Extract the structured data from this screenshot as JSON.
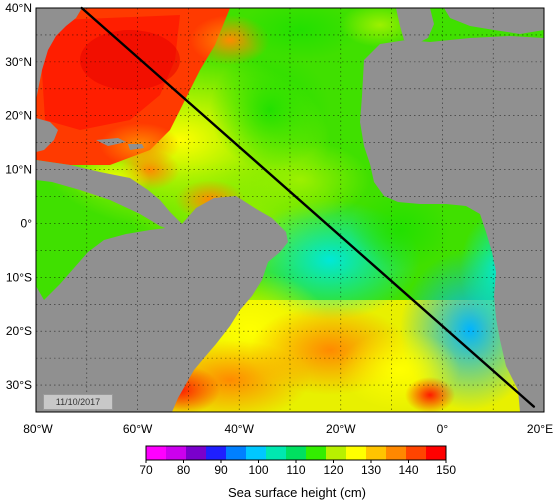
{
  "map": {
    "date": "11/10/2017",
    "lat_labels": [
      "40°N",
      "30°N",
      "20°N",
      "10°N",
      "0°",
      "10°S",
      "20°S",
      "30°S"
    ],
    "lon_labels": [
      "80°W",
      "60°W",
      "40°W",
      "20°W",
      "0°",
      "20°E"
    ],
    "extent": {
      "lon": [
        -80,
        20
      ],
      "lat": [
        -35,
        40
      ]
    },
    "track": {
      "from": [
        -71,
        40
      ],
      "to": [
        18,
        -34
      ]
    },
    "land_color": "#909090"
  },
  "colorbar": {
    "ticks": [
      "70",
      "80",
      "90",
      "100",
      "110",
      "120",
      "130",
      "140",
      "150"
    ],
    "label": "Sea surface height (cm)",
    "colors": [
      "#ff00ff",
      "#cc00ee",
      "#7a00cc",
      "#1f1fff",
      "#0080ff",
      "#00c8ff",
      "#00e8b0",
      "#00e060",
      "#33ee00",
      "#b8f000",
      "#ffff00",
      "#ffc400",
      "#ff8800",
      "#ff4400",
      "#ff0000"
    ]
  }
}
